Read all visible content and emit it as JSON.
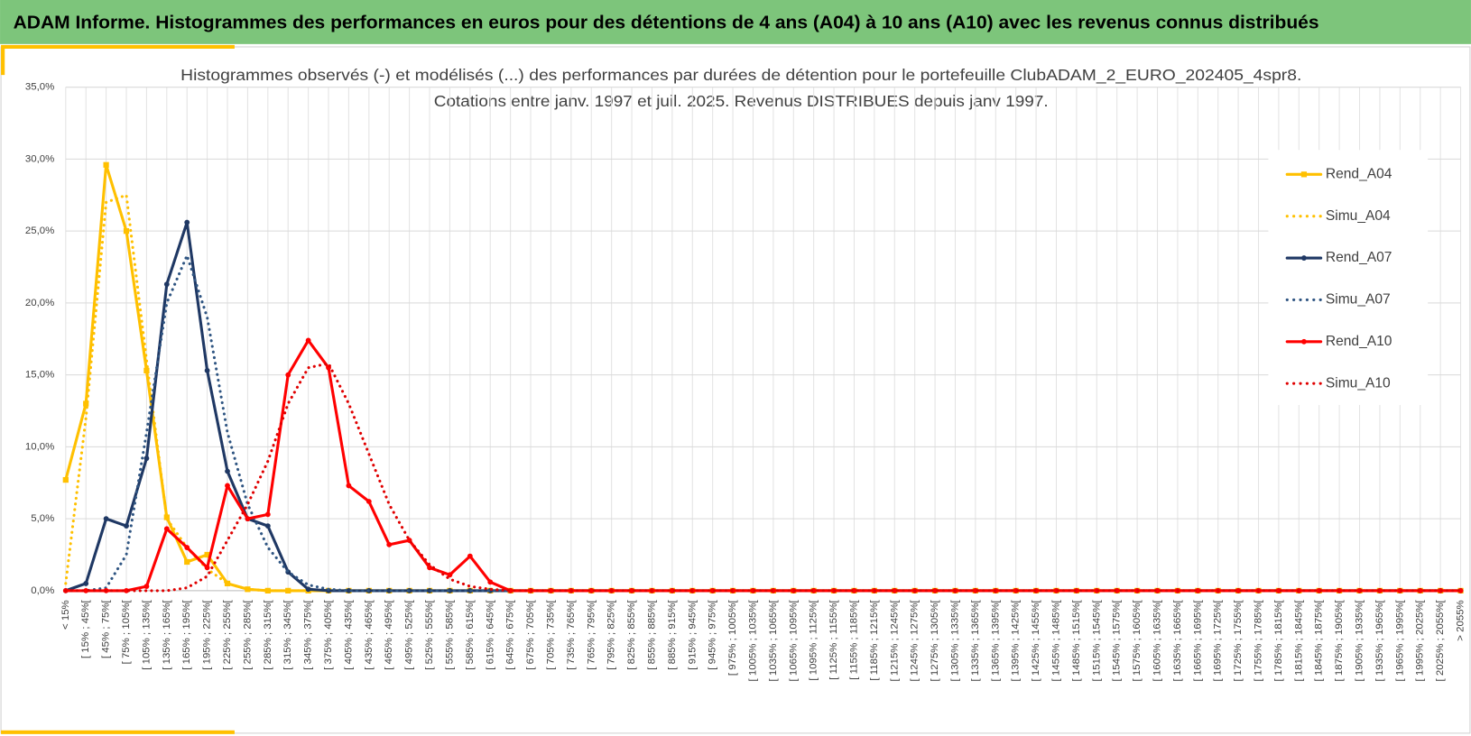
{
  "chart_data": {
    "type": "line",
    "header": "ADAM Informe. Histogrammes des performances en euros pour des détentions de 4 ans (A04) à 10 ans (A10) avec les revenus connus distribués",
    "title": [
      "Histogrammes observés (-) et modélisés (...) des performances par durées de détention pour le portefeuille ClubADAM_2_EURO_202405_4spr8.",
      "Cotations entre janv. 1997 et juil. 2025. Revenus DISTRIBUES depuis janv 1997."
    ],
    "categories": [
      "< 15%",
      "[ 15% ; 45%[",
      "[ 45% ; 75%[",
      "[ 75% ; 105%[",
      "[ 105% ; 135%[",
      "[ 135% ; 165%[",
      "[ 165% ; 195%[",
      "[ 195% ; 225%[",
      "[ 225% ; 255%[",
      "[ 255% ; 285%[",
      "[ 285% ; 315%[",
      "[ 315% ; 345%[",
      "[ 345% ; 375%[",
      "[ 375% ; 405%[",
      "[ 405% ; 435%[",
      "[ 435% ; 465%[",
      "[ 465% ; 495%[",
      "[ 495% ; 525%[",
      "[ 525% ; 555%[",
      "[ 555% ; 585%[",
      "[ 585% ; 615%[",
      "[ 615% ; 645%[",
      "[ 645% ; 675%[",
      "[ 675% ; 705%[",
      "[ 705% ; 735%[",
      "[ 735% ; 765%[",
      "[ 765% ; 795%[",
      "[ 795% ; 825%[",
      "[ 825% ; 855%[",
      "[ 855% ; 885%[",
      "[ 885% ; 915%[",
      "[ 915% ; 945%[",
      "[ 945% ; 975%[",
      "[ 975% ; 1005%[",
      "[ 1005% ; 1035%[",
      "[ 1035% ; 1065%[",
      "[ 1065% ; 1095%[",
      "[ 1095% ; 1125%[",
      "[ 1125% ; 1155%[",
      "[ 1155% ; 1185%[",
      "[ 1185% ; 1215%[",
      "[ 1215% ; 1245%[",
      "[ 1245% ; 1275%[",
      "[ 1275% ; 1305%[",
      "[ 1305% ; 1335%[",
      "[ 1335% ; 1365%[",
      "[ 1365% ; 1395%[",
      "[ 1395% ; 1425%[",
      "[ 1425% ; 1455%[",
      "[ 1455% ; 1485%[",
      "[ 1485% ; 1515%[",
      "[ 1515% ; 1545%[",
      "[ 1545% ; 1575%[",
      "[ 1575% ; 1605%[",
      "[ 1605% ; 1635%[",
      "[ 1635% ; 1665%[",
      "[ 1665% ; 1695%[",
      "[ 1695% ; 1725%[",
      "[ 1725% ; 1755%[",
      "[ 1755% ; 1785%[",
      "[ 1785% ; 1815%[",
      "[ 1815% ; 1845%[",
      "[ 1845% ; 1875%[",
      "[ 1875% ; 1905%[",
      "[ 1905% ; 1935%[",
      "[ 1935% ; 1965%[",
      "[ 1965% ; 1995%[",
      "[ 1995% ; 2025%[",
      "[ 2025% ; 2055%[",
      "> 2055%"
    ],
    "series": [
      {
        "name": "Rend_A04",
        "color": "#ffc000",
        "dash": "solid",
        "marker": "square",
        "values": [
          7.7,
          13,
          29.6,
          25,
          15.3,
          5.1,
          2.0,
          2.5,
          0.5,
          0.1,
          0,
          0,
          0,
          0,
          0,
          0,
          0,
          0,
          0,
          0,
          0,
          0,
          0,
          0,
          0,
          0,
          0,
          0,
          0,
          0,
          0,
          0,
          0,
          0,
          0,
          0,
          0,
          0,
          0,
          0,
          0,
          0,
          0,
          0,
          0,
          0,
          0,
          0,
          0,
          0,
          0,
          0,
          0,
          0,
          0,
          0,
          0,
          0,
          0,
          0,
          0,
          0,
          0,
          0,
          0,
          0,
          0,
          0,
          0,
          0
        ]
      },
      {
        "name": "Simu_A04",
        "color": "#ffc000",
        "dash": "dotted",
        "values": [
          0.5,
          12,
          27,
          27.5,
          16,
          5,
          3,
          1.5,
          0.5,
          0.1,
          0,
          0,
          0,
          0,
          0,
          0,
          0,
          0,
          0,
          0,
          0,
          0,
          0,
          0,
          0,
          0,
          0,
          0,
          0,
          0,
          0,
          0,
          0,
          0,
          0,
          0,
          0,
          0,
          0,
          0,
          0,
          0,
          0,
          0,
          0,
          0,
          0,
          0,
          0,
          0,
          0,
          0,
          0,
          0,
          0,
          0,
          0,
          0,
          0,
          0,
          0,
          0,
          0,
          0,
          0,
          0,
          0,
          0,
          0,
          0
        ]
      },
      {
        "name": "Rend_A07",
        "color": "#1f3864",
        "dash": "solid",
        "marker": "circle",
        "values": [
          0,
          0.5,
          5,
          4.5,
          9.2,
          21.3,
          25.6,
          15.3,
          8.3,
          5,
          4.5,
          1.3,
          0.1,
          0,
          0,
          0,
          0,
          0,
          0,
          0,
          0,
          0,
          0,
          0,
          0,
          0,
          0,
          0,
          0,
          0,
          0,
          0,
          0,
          0,
          0,
          0,
          0,
          0,
          0,
          0,
          0,
          0,
          0,
          0,
          0,
          0,
          0,
          0,
          0,
          0,
          0,
          0,
          0,
          0,
          0,
          0,
          0,
          0,
          0,
          0,
          0,
          0,
          0,
          0,
          0,
          0,
          0,
          0,
          0,
          0
        ]
      },
      {
        "name": "Simu_A07",
        "color": "#2f5582",
        "dash": "dotted",
        "values": [
          0,
          0,
          0.2,
          2.5,
          11,
          20,
          23.3,
          19,
          11,
          6,
          3,
          1.3,
          0.4,
          0.1,
          0,
          0,
          0,
          0,
          0,
          0,
          0,
          0,
          0,
          0,
          0,
          0,
          0,
          0,
          0,
          0,
          0,
          0,
          0,
          0,
          0,
          0,
          0,
          0,
          0,
          0,
          0,
          0,
          0,
          0,
          0,
          0,
          0,
          0,
          0,
          0,
          0,
          0,
          0,
          0,
          0,
          0,
          0,
          0,
          0,
          0,
          0,
          0,
          0,
          0,
          0,
          0,
          0,
          0,
          0,
          0
        ]
      },
      {
        "name": "Rend_A10",
        "color": "#ff0000",
        "dash": "solid",
        "marker": "circle",
        "values": [
          0,
          0,
          0,
          0,
          0.3,
          4.3,
          3.0,
          1.6,
          7.3,
          5,
          5.3,
          15,
          17.4,
          15.5,
          7.3,
          6.2,
          3.2,
          3.5,
          1.6,
          1.1,
          2.4,
          0.6,
          0,
          0,
          0,
          0,
          0,
          0,
          0,
          0,
          0,
          0,
          0,
          0,
          0,
          0,
          0,
          0,
          0,
          0,
          0,
          0,
          0,
          0,
          0,
          0,
          0,
          0,
          0,
          0,
          0,
          0,
          0,
          0,
          0,
          0,
          0,
          0,
          0,
          0,
          0,
          0,
          0,
          0,
          0,
          0,
          0,
          0,
          0,
          0
        ]
      },
      {
        "name": "Simu_A10",
        "color": "#e00000",
        "dash": "dotted",
        "values": [
          0,
          0,
          0,
          0,
          0,
          0,
          0.2,
          1,
          3.5,
          6,
          9,
          13,
          15.5,
          15.8,
          13,
          9.5,
          6,
          3.5,
          1.8,
          0.8,
          0.3,
          0.1,
          0,
          0,
          0,
          0,
          0,
          0,
          0,
          0,
          0,
          0,
          0,
          0,
          0,
          0,
          0,
          0,
          0,
          0,
          0,
          0,
          0,
          0,
          0,
          0,
          0,
          0,
          0,
          0,
          0,
          0,
          0,
          0,
          0,
          0,
          0,
          0,
          0,
          0,
          0,
          0,
          0,
          0,
          0,
          0,
          0,
          0,
          0,
          0
        ]
      }
    ],
    "ylim": [
      0,
      35
    ],
    "yticks": [
      {
        "value": 0,
        "label": "0,0%"
      },
      {
        "value": 5,
        "label": "5,0%"
      },
      {
        "value": 10,
        "label": "10,0%"
      },
      {
        "value": 15,
        "label": "15,0%"
      },
      {
        "value": 20,
        "label": "20,0%"
      },
      {
        "value": 25,
        "label": "25,0%"
      },
      {
        "value": 30,
        "label": "30,0%"
      },
      {
        "value": 35,
        "label": "35,0%"
      }
    ],
    "grid": true,
    "legend": "right"
  }
}
